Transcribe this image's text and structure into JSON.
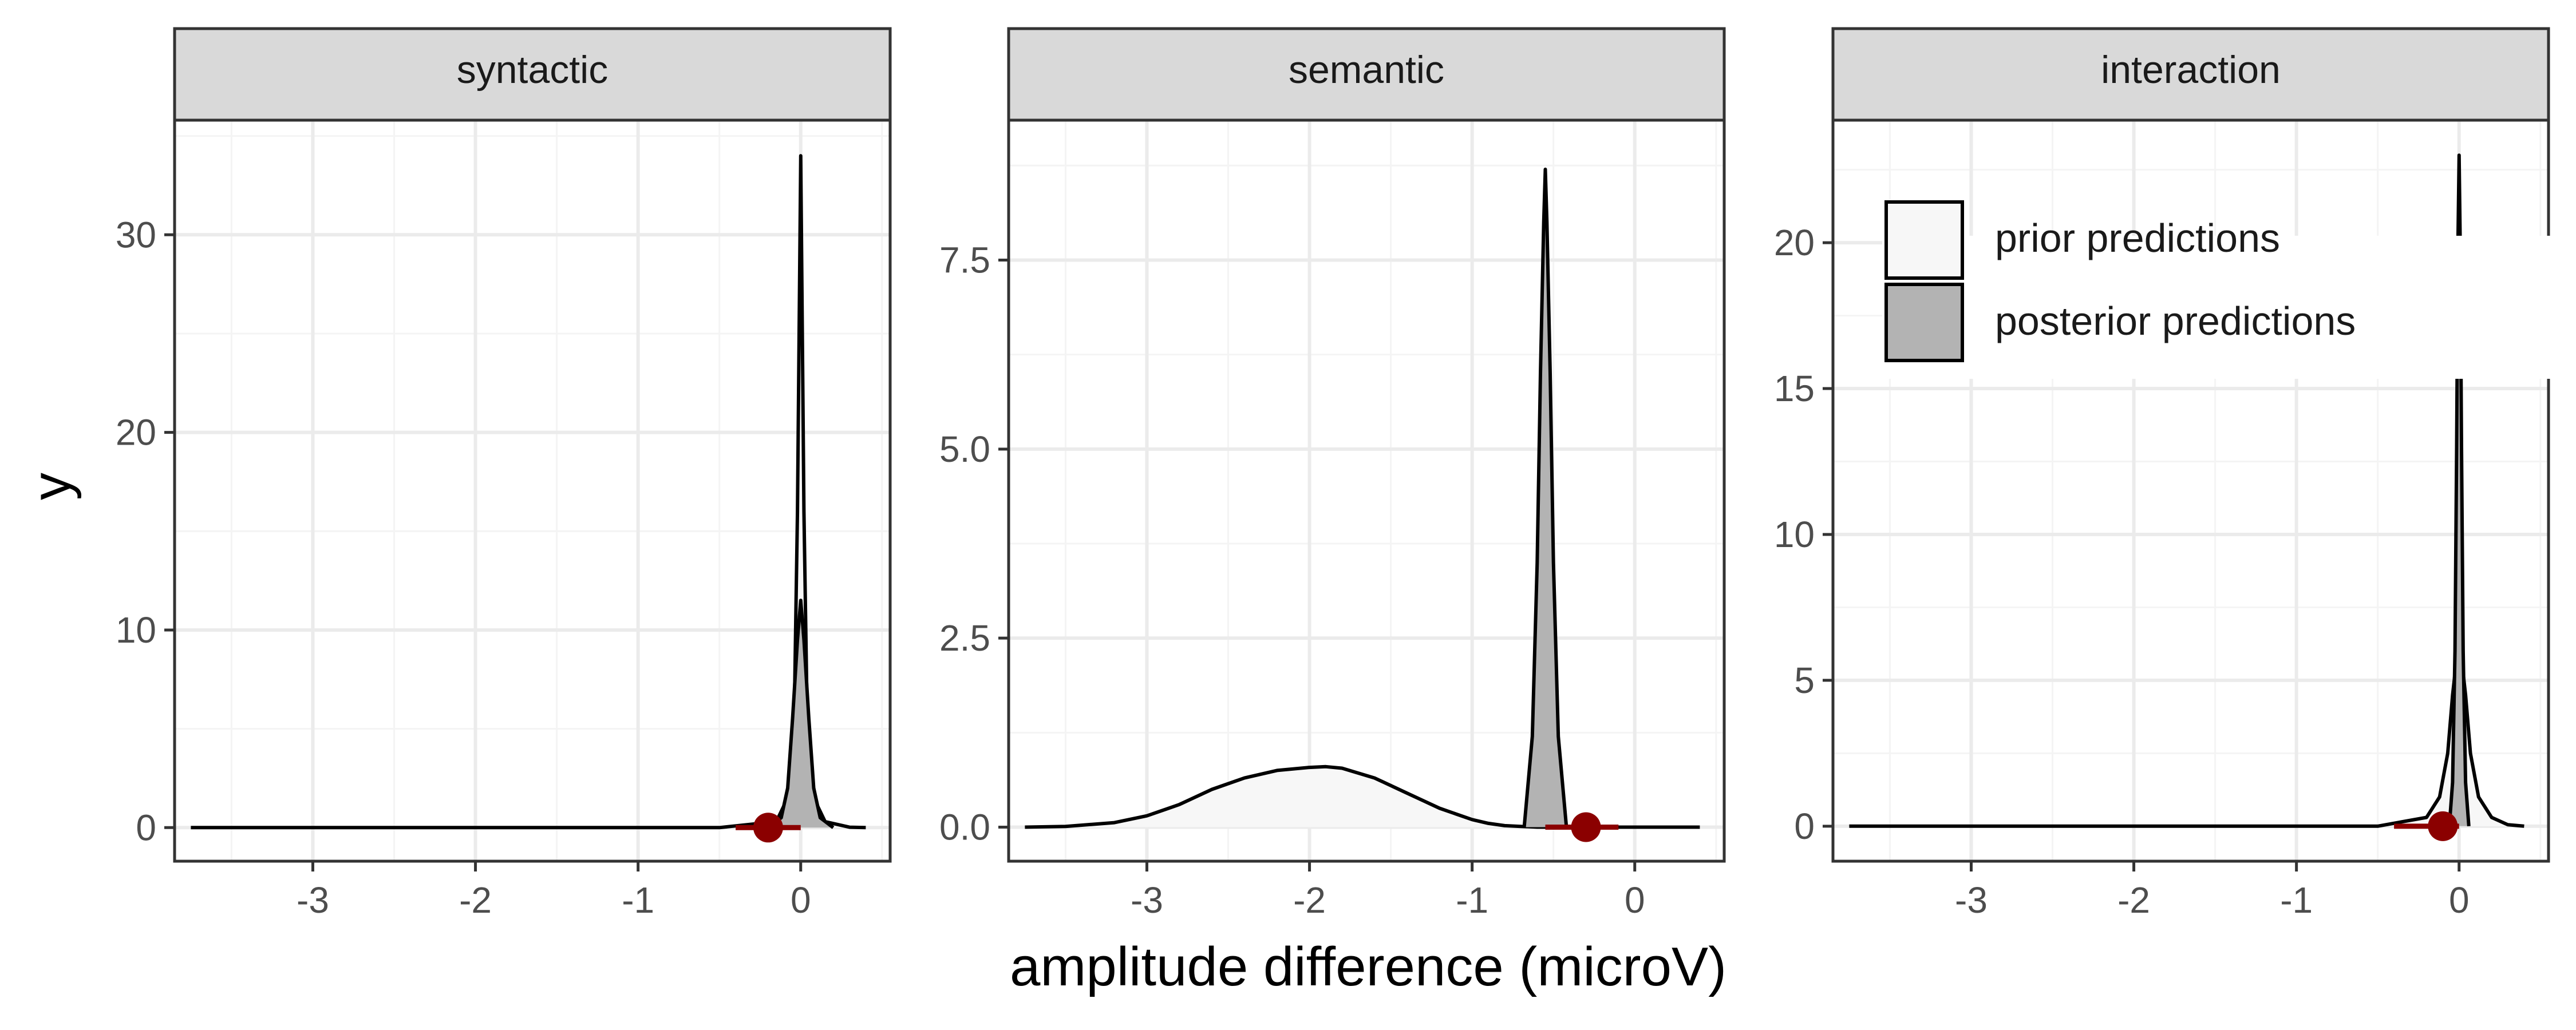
{
  "figure": {
    "xlabel": "amplitude difference (microV)",
    "ylabel": "y"
  },
  "legend": {
    "placement": "top-left of right panel",
    "items": [
      {
        "label": "prior predictions",
        "color": "#f7f7f7"
      },
      {
        "label": "posterior predictions",
        "color": "#b3b3b3"
      }
    ]
  },
  "colors": {
    "prior_fill": "#f7f7f7",
    "posterior_fill": "#b3b3b3",
    "observed_point": "#8b0000",
    "strip_bg": "#d9d9d9",
    "grid_major": "#ebebeb",
    "grid_minor": "#f4f4f4"
  },
  "chart_data": [
    {
      "type": "area",
      "title": "syntactic",
      "xlim": [
        -3.85,
        0.55
      ],
      "ylim": [
        -1.7,
        35.8
      ],
      "x_ticks": [
        -3,
        -2,
        -1,
        0
      ],
      "x_tick_labels": [
        "-3",
        "-2",
        "-1",
        "0"
      ],
      "y_ticks": [
        0,
        10,
        20,
        30
      ],
      "y_tick_labels": [
        "0",
        "10",
        "20",
        "30"
      ],
      "grid": true,
      "series": [
        {
          "name": "prior predictions",
          "x": [
            -3.75,
            -2.0,
            -0.5,
            -0.15,
            -0.08,
            -0.04,
            -0.02,
            0.0,
            0.02,
            0.04,
            0.08,
            0.15,
            0.3,
            0.4
          ],
          "values": [
            0,
            0,
            0,
            0.3,
            1.5,
            5.5,
            16,
            34,
            16,
            5.5,
            1.5,
            0.3,
            0.02,
            0
          ]
        },
        {
          "name": "posterior predictions",
          "x": [
            -0.2,
            -0.12,
            -0.08,
            -0.05,
            -0.02,
            0.0,
            0.02,
            0.05,
            0.08,
            0.12,
            0.2
          ],
          "values": [
            0,
            0.5,
            2.0,
            5.5,
            9.5,
            11.5,
            9.5,
            5.5,
            2.0,
            0.5,
            0
          ]
        }
      ],
      "observed": {
        "point": -0.2,
        "interval": [
          -0.4,
          0.0
        ]
      }
    },
    {
      "type": "area",
      "title": "semantic",
      "xlim": [
        -3.85,
        0.55
      ],
      "ylim": [
        -0.45,
        9.35
      ],
      "x_ticks": [
        -3,
        -2,
        -1,
        0
      ],
      "x_tick_labels": [
        "-3",
        "-2",
        "-1",
        "0"
      ],
      "y_ticks": [
        0,
        2.5,
        5,
        7.5
      ],
      "y_tick_labels": [
        "0.0",
        "2.5",
        "5.0",
        "7.5"
      ],
      "grid": true,
      "series": [
        {
          "name": "prior predictions",
          "x": [
            -3.75,
            -3.5,
            -3.2,
            -3.0,
            -2.8,
            -2.6,
            -2.4,
            -2.2,
            -2.0,
            -1.9,
            -1.8,
            -1.6,
            -1.4,
            -1.2,
            -1.0,
            -0.9,
            -0.8,
            -0.7,
            -0.6,
            -0.4,
            -0.2,
            0.0,
            0.2,
            0.4
          ],
          "values": [
            0,
            0.01,
            0.06,
            0.15,
            0.3,
            0.5,
            0.65,
            0.75,
            0.79,
            0.8,
            0.78,
            0.65,
            0.45,
            0.25,
            0.1,
            0.05,
            0.02,
            0.01,
            0,
            0,
            0,
            0,
            0,
            0
          ]
        },
        {
          "name": "posterior predictions",
          "x": [
            -0.68,
            -0.63,
            -0.6,
            -0.58,
            -0.56,
            -0.55,
            -0.54,
            -0.52,
            -0.5,
            -0.47,
            -0.42
          ],
          "values": [
            0,
            1.2,
            3.5,
            6.0,
            8.0,
            8.7,
            8.0,
            6.0,
            3.5,
            1.2,
            0
          ]
        }
      ],
      "observed": {
        "point": -0.3,
        "interval": [
          -0.55,
          -0.1
        ]
      }
    },
    {
      "type": "area",
      "title": "interaction",
      "xlim": [
        -3.85,
        0.55
      ],
      "ylim": [
        -1.2,
        24.2
      ],
      "x_ticks": [
        -3,
        -2,
        -1,
        0
      ],
      "x_tick_labels": [
        "-3",
        "-2",
        "-1",
        "0"
      ],
      "y_ticks": [
        0,
        5,
        10,
        15,
        20
      ],
      "y_tick_labels": [
        "0",
        "5",
        "10",
        "15",
        "20"
      ],
      "grid": true,
      "series": [
        {
          "name": "prior predictions",
          "x": [
            -3.75,
            -2.0,
            -0.5,
            -0.2,
            -0.12,
            -0.07,
            -0.04,
            -0.02,
            0.0,
            0.02,
            0.04,
            0.07,
            0.12,
            0.2,
            0.3,
            0.4
          ],
          "values": [
            0,
            0,
            0,
            0.3,
            1.0,
            2.5,
            4.5,
            5.5,
            6.0,
            5.5,
            4.5,
            2.5,
            1.0,
            0.3,
            0.05,
            0
          ]
        },
        {
          "name": "posterior predictions",
          "x": [
            -0.06,
            -0.04,
            -0.025,
            -0.015,
            -0.007,
            0.0,
            0.007,
            0.015,
            0.025,
            0.04,
            0.06
          ],
          "values": [
            0,
            1.5,
            6.0,
            13.0,
            20.0,
            23.0,
            20.0,
            13.0,
            6.0,
            1.5,
            0
          ]
        }
      ],
      "observed": {
        "point": -0.1,
        "interval": [
          -0.4,
          0.0
        ]
      }
    }
  ]
}
